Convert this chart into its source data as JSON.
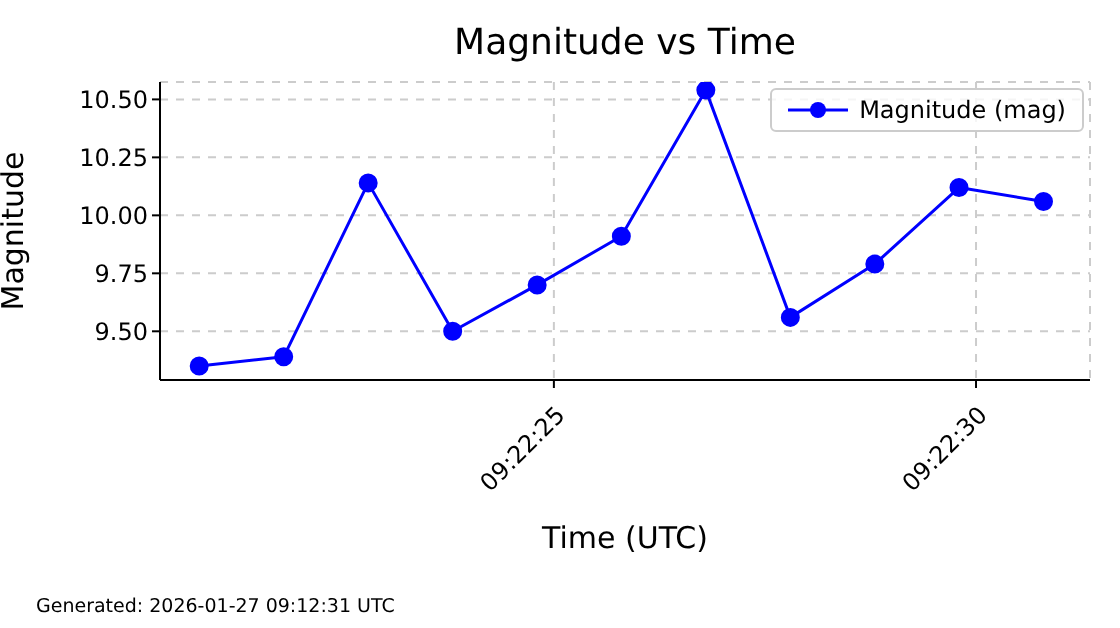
{
  "chart_data": {
    "type": "line",
    "title": "Magnitude vs Time",
    "xlabel": "Time (UTC)",
    "ylabel": "Magnitude",
    "x": [
      9.372444,
      9.372722,
      9.373,
      9.373278,
      9.373556,
      9.373833,
      9.374111,
      9.374389,
      9.374667,
      9.374944,
      9.375222
    ],
    "series": [
      {
        "name": "Magnitude (mag)",
        "color": "#0000ff",
        "values": [
          9.35,
          9.39,
          10.14,
          9.5,
          9.7,
          9.91,
          10.54,
          9.56,
          9.79,
          10.12,
          10.06
        ]
      }
    ],
    "xlim": [
      9.372315,
      9.375375
    ],
    "xticks": [
      {
        "value": 9.373611,
        "label": "09:22:25"
      },
      {
        "value": 9.375,
        "label": "09:22:30"
      }
    ],
    "ylim": [
      9.29,
      10.575
    ],
    "yticks": [
      {
        "value": 9.5,
        "label": "9.50"
      },
      {
        "value": 9.75,
        "label": "9.75"
      },
      {
        "value": 10.0,
        "label": "10.00"
      },
      {
        "value": 10.25,
        "label": "10.25"
      },
      {
        "value": 10.5,
        "label": "10.50"
      }
    ],
    "grid": true,
    "legend": "top right",
    "marker": "circle",
    "line_style": "solid",
    "annotations": [
      "Generated: 2026-01-27 09:12:31 UTC"
    ]
  }
}
